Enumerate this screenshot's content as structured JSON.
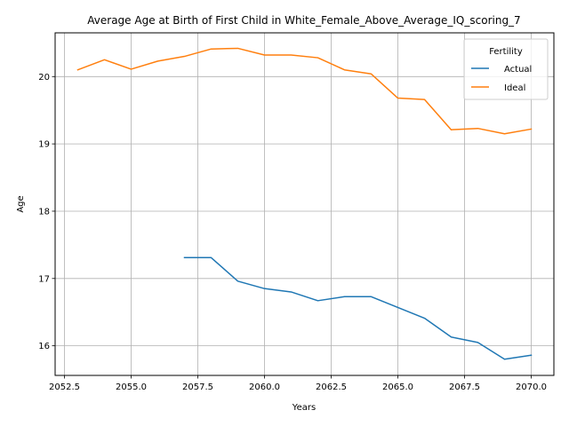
{
  "chart_data": {
    "type": "line",
    "title": "Average Age at Birth of First Child in White_Female_Above_Average_IQ_scoring_7",
    "xlabel": "Years",
    "ylabel": "Age",
    "xlim": [
      2052.15,
      2070.85
    ],
    "ylim": [
      15.56,
      20.65
    ],
    "x_ticks": [
      2052.5,
      2055.0,
      2057.5,
      2060.0,
      2062.5,
      2065.0,
      2067.5,
      2070.0
    ],
    "x_tick_labels": [
      "2052.5",
      "2055.0",
      "2057.5",
      "2060.0",
      "2062.5",
      "2065.0",
      "2067.5",
      "2070.0"
    ],
    "y_ticks": [
      16,
      17,
      18,
      19,
      20
    ],
    "y_tick_labels": [
      "16",
      "17",
      "18",
      "19",
      "20"
    ],
    "grid": true,
    "legend": {
      "title": "Fertility",
      "position": "top-right"
    },
    "series": [
      {
        "name": "Actual",
        "color": "#1f77b4",
        "x": [
          2057,
          2058,
          2059,
          2060,
          2061,
          2062,
          2063,
          2064,
          2065,
          2066,
          2067,
          2068,
          2069,
          2070
        ],
        "y": [
          17.31,
          17.31,
          16.96,
          16.85,
          16.8,
          16.67,
          16.73,
          16.73,
          16.57,
          16.41,
          16.13,
          16.05,
          15.8,
          15.86
        ]
      },
      {
        "name": "Ideal",
        "color": "#ff7f0e",
        "x": [
          2053,
          2054,
          2055,
          2056,
          2057,
          2058,
          2059,
          2060,
          2061,
          2062,
          2063,
          2064,
          2065,
          2066,
          2067,
          2068,
          2069,
          2070
        ],
        "y": [
          20.1,
          20.25,
          20.11,
          20.23,
          20.3,
          20.41,
          20.42,
          20.32,
          20.32,
          20.28,
          20.1,
          20.04,
          19.68,
          19.66,
          19.21,
          19.23,
          19.15,
          19.22
        ]
      }
    ]
  }
}
